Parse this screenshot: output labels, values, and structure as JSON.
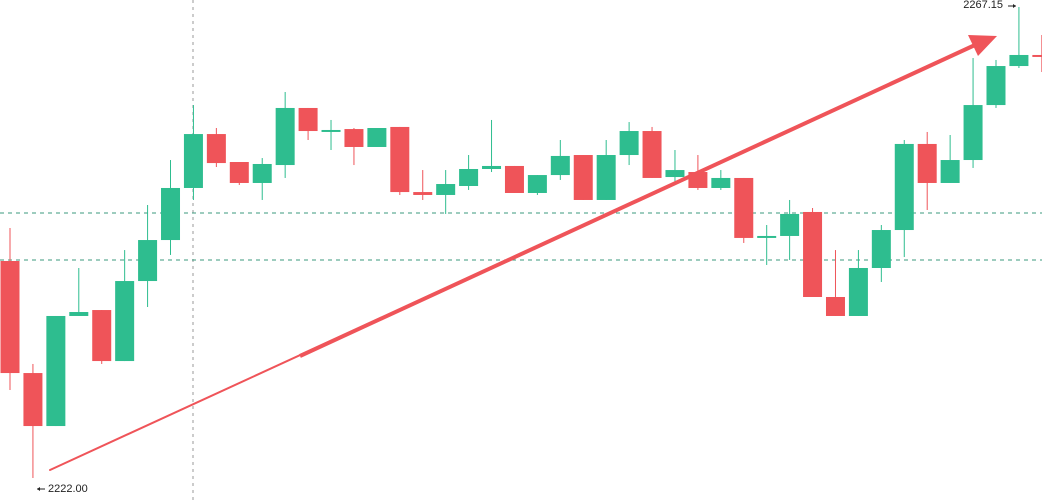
{
  "chart_data": {
    "type": "candlestick",
    "up_color": "#2ebd8f",
    "down_color": "#ef5459",
    "ylim": [
      2219.89,
      2267.82
    ],
    "high_label": "2267.15",
    "low_label": "2222.00",
    "open": [
      2242.8,
      2232.06,
      2226.98,
      2237.53,
      2238.1,
      2233.21,
      2240.88,
      2244.81,
      2249.8,
      2254.97,
      2252.29,
      2250.28,
      2252.0,
      2257.47,
      2255.17,
      2255.45,
      2253.73,
      2255.65,
      2249.41,
      2249.13,
      2249.99,
      2251.62,
      2251.91,
      2249.32,
      2251.04,
      2252.96,
      2248.65,
      2252.96,
      2255.26,
      2250.85,
      2251.33,
      2249.8,
      2250.76,
      2245.01,
      2245.2,
      2247.5,
      2239.35,
      2237.53,
      2242.13,
      2245.77,
      2254.02,
      2250.28,
      2252.48,
      2257.75,
      2261.49,
      2262.55
    ],
    "high": [
      2245.96,
      2232.93,
      2237.53,
      2242.13,
      2238.1,
      2243.85,
      2248.17,
      2252.48,
      2257.75,
      2255.55,
      2252.29,
      2252.67,
      2259.0,
      2257.47,
      2256.32,
      2255.55,
      2255.55,
      2255.65,
      2251.52,
      2251.52,
      2252.96,
      2256.32,
      2251.91,
      2251.04,
      2254.4,
      2252.96,
      2254.4,
      2256.12,
      2255.65,
      2253.44,
      2252.96,
      2251.52,
      2250.76,
      2246.25,
      2248.65,
      2247.88,
      2243.85,
      2243.85,
      2246.25,
      2254.4,
      2255.17,
      2254.88,
      2262.26,
      2262.07,
      2267.15,
      2264.46
    ],
    "low": [
      2230.43,
      2222.0,
      2226.98,
      2237.53,
      2232.93,
      2233.21,
      2238.39,
      2243.38,
      2248.65,
      2251.81,
      2250.09,
      2248.65,
      2250.76,
      2254.4,
      2253.44,
      2252.0,
      2253.73,
      2249.13,
      2248.65,
      2247.31,
      2249.61,
      2251.33,
      2249.32,
      2249.13,
      2250.57,
      2248.65,
      2248.65,
      2252.0,
      2250.76,
      2250.09,
      2249.61,
      2249.61,
      2244.53,
      2242.42,
      2242.9,
      2239.35,
      2237.53,
      2237.53,
      2240.79,
      2243.18,
      2247.69,
      2250.28,
      2251.72,
      2257.47,
      2261.3,
      2260.92
    ],
    "close": [
      2232.06,
      2226.98,
      2237.53,
      2237.91,
      2233.21,
      2240.88,
      2244.81,
      2249.8,
      2254.97,
      2252.19,
      2250.28,
      2252.1,
      2257.47,
      2255.26,
      2255.36,
      2253.73,
      2255.55,
      2249.41,
      2249.13,
      2250.18,
      2251.62,
      2251.91,
      2249.32,
      2251.04,
      2252.87,
      2248.65,
      2252.96,
      2255.26,
      2250.76,
      2251.52,
      2249.8,
      2250.76,
      2245.01,
      2245.2,
      2247.31,
      2239.35,
      2237.53,
      2242.13,
      2245.77,
      2254.02,
      2250.28,
      2252.48,
      2257.75,
      2261.49,
      2262.55,
      2262.36
    ]
  }
}
